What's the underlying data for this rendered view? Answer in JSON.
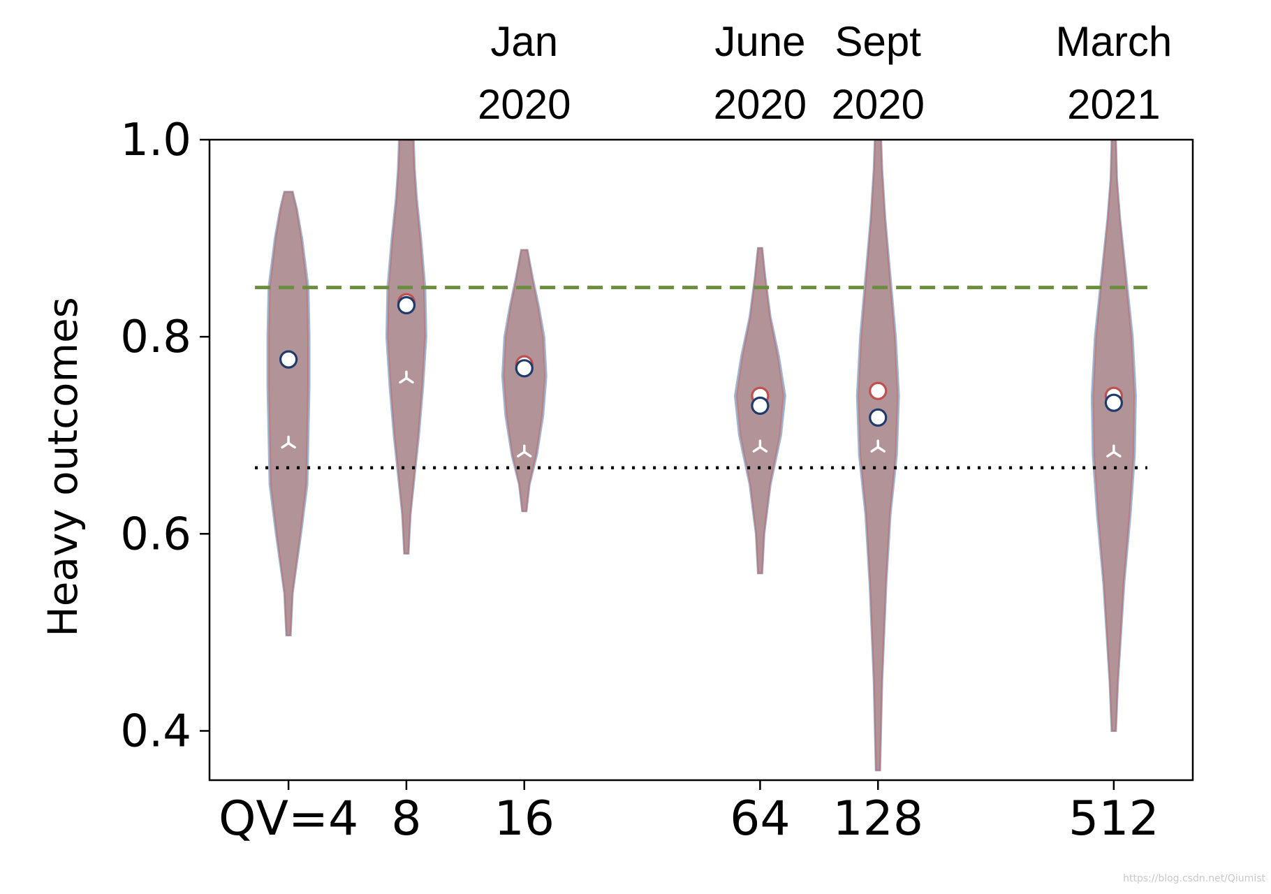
{
  "chart_data": {
    "type": "violin",
    "ylabel": "Heavy outcomes",
    "ylim": [
      0.35,
      1.0
    ],
    "yticks": [
      0.4,
      0.6,
      0.8,
      1.0
    ],
    "ytick_labels": [
      "0.4",
      "0.6",
      "0.8",
      "1.0"
    ],
    "xtick_labels": [
      "QV=4",
      "8",
      "16",
      "64",
      "128",
      "512"
    ],
    "x_log2": [
      2,
      3,
      4,
      6,
      7,
      9
    ],
    "top_labels": [
      {
        "log2": 4,
        "line1": "Jan",
        "line2": "2020"
      },
      {
        "log2": 6,
        "line1": "June",
        "line2": "2020"
      },
      {
        "log2": 7,
        "line1": "Sept",
        "line2": "2020"
      },
      {
        "log2": 9,
        "line1": "March",
        "line2": "2021"
      }
    ],
    "thresholds": {
      "green_dashed": 0.85,
      "black_dotted": 0.667
    },
    "colors": {
      "violin_fill": "#a8868b",
      "violin_edge": "#b76b6b",
      "violin_edge_blue": "#8fa6c7",
      "mean_red": "#c0504d",
      "mean_blue": "#1f3b6b",
      "green": "#6b8e3e",
      "black": "#000000"
    },
    "series": [
      {
        "qv": "QV=4",
        "mean_red": 0.777,
        "mean_blue": 0.777,
        "lower_bound": 0.692,
        "profile": [
          [
            0.497,
            0.002
          ],
          [
            0.54,
            0.004
          ],
          [
            0.6,
            0.012
          ],
          [
            0.65,
            0.018
          ],
          [
            0.7,
            0.019
          ],
          [
            0.75,
            0.02
          ],
          [
            0.8,
            0.02
          ],
          [
            0.85,
            0.019
          ],
          [
            0.9,
            0.013
          ],
          [
            0.93,
            0.008
          ],
          [
            0.947,
            0.004
          ]
        ]
      },
      {
        "qv": "8",
        "mean_red": 0.835,
        "mean_blue": 0.832,
        "lower_bound": 0.758,
        "profile": [
          [
            0.58,
            0.002
          ],
          [
            0.62,
            0.004
          ],
          [
            0.66,
            0.008
          ],
          [
            0.7,
            0.012
          ],
          [
            0.75,
            0.016
          ],
          [
            0.8,
            0.019
          ],
          [
            0.85,
            0.018
          ],
          [
            0.9,
            0.014
          ],
          [
            0.94,
            0.01
          ],
          [
            0.97,
            0.008
          ],
          [
            1.0,
            0.007
          ]
        ]
      },
      {
        "qv": "16",
        "mean_red": 0.772,
        "mean_blue": 0.768,
        "lower_bound": 0.683,
        "profile": [
          [
            0.623,
            0.002
          ],
          [
            0.65,
            0.005
          ],
          [
            0.68,
            0.012
          ],
          [
            0.72,
            0.018
          ],
          [
            0.76,
            0.021
          ],
          [
            0.8,
            0.019
          ],
          [
            0.83,
            0.014
          ],
          [
            0.86,
            0.008
          ],
          [
            0.888,
            0.003
          ]
        ]
      },
      {
        "qv": "64",
        "mean_red": 0.74,
        "mean_blue": 0.73,
        "lower_bound": 0.688,
        "profile": [
          [
            0.56,
            0.002
          ],
          [
            0.6,
            0.004
          ],
          [
            0.65,
            0.01
          ],
          [
            0.7,
            0.02
          ],
          [
            0.74,
            0.024
          ],
          [
            0.78,
            0.018
          ],
          [
            0.82,
            0.01
          ],
          [
            0.86,
            0.005
          ],
          [
            0.89,
            0.002
          ]
        ]
      },
      {
        "qv": "128",
        "mean_red": 0.745,
        "mean_blue": 0.718,
        "lower_bound": 0.688,
        "profile": [
          [
            0.36,
            0.002
          ],
          [
            0.45,
            0.004
          ],
          [
            0.55,
            0.008
          ],
          [
            0.62,
            0.012
          ],
          [
            0.68,
            0.018
          ],
          [
            0.74,
            0.02
          ],
          [
            0.8,
            0.017
          ],
          [
            0.86,
            0.012
          ],
          [
            0.92,
            0.007
          ],
          [
            0.97,
            0.004
          ],
          [
            1.0,
            0.003
          ]
        ]
      },
      {
        "qv": "512",
        "mean_red": 0.74,
        "mean_blue": 0.733,
        "lower_bound": 0.683,
        "profile": [
          [
            0.4,
            0.002
          ],
          [
            0.45,
            0.004
          ],
          [
            0.55,
            0.01
          ],
          [
            0.62,
            0.016
          ],
          [
            0.68,
            0.02
          ],
          [
            0.74,
            0.021
          ],
          [
            0.8,
            0.018
          ],
          [
            0.86,
            0.012
          ],
          [
            0.92,
            0.006
          ],
          [
            0.96,
            0.003
          ],
          [
            1.0,
            0.002
          ]
        ]
      }
    ]
  },
  "watermark": "https://blog.csdn.net/Qiumist"
}
